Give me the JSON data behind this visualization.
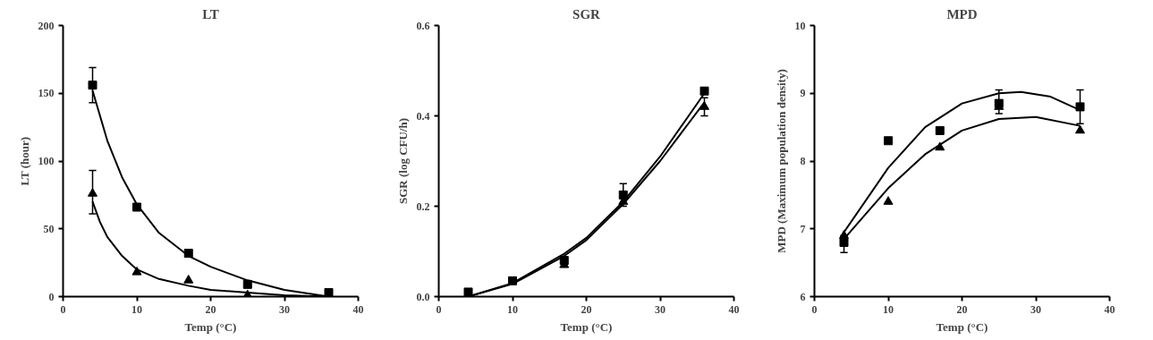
{
  "chart_data": [
    {
      "type": "scatter",
      "title": "LT",
      "xlabel": "Temp (°C)",
      "ylabel": "LT (hour)",
      "xlim": [
        0,
        40
      ],
      "xticks": [
        0,
        10,
        20,
        30,
        40
      ],
      "ylim": [
        0,
        200
      ],
      "yticks": [
        0,
        50,
        100,
        150,
        200
      ],
      "grid": false,
      "series": [
        {
          "marker": "square",
          "color": "#000000",
          "x": [
            4,
            10,
            17,
            25,
            36
          ],
          "values": [
            156,
            66,
            32,
            9,
            3
          ],
          "errors": [
            [
              143,
              169
            ],
            null,
            null,
            null,
            null
          ]
        },
        {
          "marker": "triangle",
          "color": "#000000",
          "x": [
            4,
            10,
            17,
            25
          ],
          "values": [
            76,
            18,
            12,
            1
          ],
          "errors": [
            [
              61,
              93
            ],
            null,
            null,
            null
          ]
        },
        {
          "type": "line",
          "marker": "none",
          "color": "#000000",
          "x": [
            4,
            6,
            8,
            10,
            13,
            17,
            20,
            25,
            30,
            36
          ],
          "values": [
            152,
            115,
            88,
            68,
            47,
            30,
            22,
            12,
            5,
            0
          ]
        },
        {
          "type": "line",
          "marker": "none",
          "color": "#000000",
          "x": [
            4,
            5,
            6,
            8,
            10,
            13,
            17,
            20,
            25,
            30,
            36
          ],
          "values": [
            70,
            55,
            44,
            30,
            20,
            13,
            8,
            5,
            3,
            1,
            0
          ]
        }
      ]
    },
    {
      "type": "scatter",
      "title": "SGR",
      "xlabel": "Temp (°C)",
      "ylabel": "SGR (log CFU/h)",
      "xlim": [
        0,
        40
      ],
      "xticks": [
        0,
        10,
        20,
        30,
        40
      ],
      "ylim": [
        0,
        0.6
      ],
      "yticks": [
        {
          "value": 0,
          "label": "0.0"
        },
        0.2,
        0.4,
        0.6
      ],
      "grid": false,
      "series": [
        {
          "marker": "square",
          "color": "#000000",
          "x": [
            4,
            10,
            17,
            25,
            36
          ],
          "values": [
            0.01,
            0.035,
            0.08,
            0.225,
            0.455
          ],
          "errors": [
            null,
            null,
            null,
            [
              0.2,
              0.25
            ],
            null
          ]
        },
        {
          "marker": "triangle",
          "color": "#000000",
          "x": [
            17,
            25,
            36
          ],
          "values": [
            0.07,
            0.21,
            0.42
          ],
          "errors": [
            null,
            null,
            [
              0.4,
              0.44
            ]
          ]
        },
        {
          "type": "line",
          "marker": "none",
          "color": "#000000",
          "x": [
            4,
            10,
            17,
            20,
            25,
            30,
            36
          ],
          "values": [
            0,
            0.03,
            0.095,
            0.13,
            0.21,
            0.31,
            0.45
          ]
        },
        {
          "type": "line",
          "marker": "none",
          "color": "#000000",
          "x": [
            4,
            10,
            17,
            20,
            25,
            30,
            36
          ],
          "values": [
            0,
            0.028,
            0.09,
            0.125,
            0.205,
            0.3,
            0.43
          ]
        }
      ]
    },
    {
      "type": "scatter",
      "title": "MPD",
      "xlabel": "Temp (°C)",
      "ylabel": "MPD (Maximum population density)",
      "xlim": [
        0,
        40
      ],
      "xticks": [
        0,
        10,
        20,
        30,
        40
      ],
      "ylim": [
        6,
        10
      ],
      "yticks": [
        6,
        7,
        8,
        9,
        10
      ],
      "grid": false,
      "series": [
        {
          "marker": "square",
          "color": "#000000",
          "x": [
            4,
            10,
            17,
            25,
            36
          ],
          "values": [
            6.8,
            8.3,
            8.45,
            8.85,
            8.8
          ],
          "errors": [
            [
              6.65,
              6.9
            ],
            null,
            null,
            [
              8.7,
              9.05
            ],
            [
              8.55,
              9.05
            ]
          ]
        },
        {
          "marker": "triangle",
          "color": "#000000",
          "x": [
            4,
            10,
            17,
            25,
            36
          ],
          "values": [
            6.9,
            7.4,
            8.2,
            8.8,
            8.45
          ]
        },
        {
          "type": "line",
          "marker": "none",
          "color": "#000000",
          "x": [
            4,
            10,
            15,
            20,
            25,
            28,
            32,
            36
          ],
          "values": [
            6.95,
            7.9,
            8.5,
            8.85,
            9.0,
            9.02,
            8.95,
            8.75
          ]
        },
        {
          "type": "line",
          "marker": "none",
          "color": "#000000",
          "x": [
            4,
            10,
            15,
            20,
            25,
            30,
            36
          ],
          "values": [
            6.85,
            7.6,
            8.1,
            8.45,
            8.62,
            8.65,
            8.52
          ]
        }
      ]
    }
  ]
}
